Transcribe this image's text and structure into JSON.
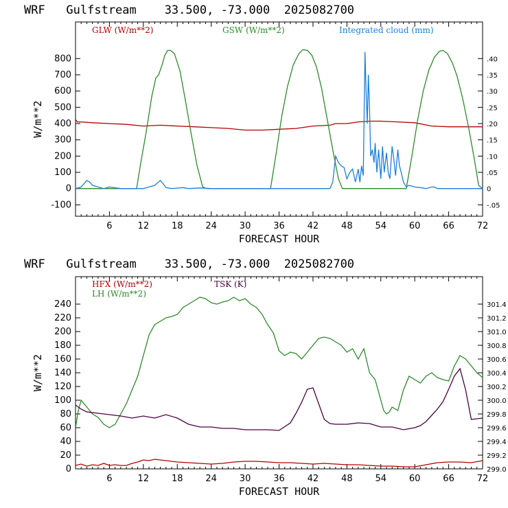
{
  "chart_data": [
    {
      "type": "line",
      "title": "WRF   Gulfstream    33.500, -73.000  2025082700",
      "xlabel": "FORECAST HOUR",
      "ylabel": "W/m**2",
      "xlim": [
        0,
        72
      ],
      "ylim": [
        -170,
        1025
      ],
      "y2lim": [
        -0.085,
        0.5125
      ],
      "xticks": [
        "6",
        "12",
        "18",
        "24",
        "30",
        "36",
        "42",
        "48",
        "54",
        "60",
        "66",
        "72"
      ],
      "xtick_values": [
        6,
        12,
        18,
        24,
        30,
        36,
        42,
        48,
        54,
        60,
        66,
        72
      ],
      "yticks": [
        "800",
        "700",
        "600",
        "500",
        "400",
        "300",
        "200",
        "100",
        "0",
        "-100"
      ],
      "ytick_values": [
        800,
        700,
        600,
        500,
        400,
        300,
        200,
        100,
        0,
        -100
      ],
      "y2ticks": [
        ".40",
        ".35",
        ".30",
        ".25",
        ".20",
        ".15",
        ".10",
        ".05",
        "0",
        "-.05"
      ],
      "y2tick_values": [
        0.4,
        0.35,
        0.3,
        0.25,
        0.2,
        0.15,
        0.1,
        0.05,
        0,
        -0.05
      ],
      "grid": false,
      "series": [
        {
          "name": "GLW (W/m**2)",
          "color": "#b00000",
          "axis": "left",
          "x": [
            0,
            0.3,
            1,
            3,
            6,
            9,
            12,
            15,
            18,
            21,
            24,
            27,
            30,
            33,
            36,
            39,
            42,
            45,
            46,
            48,
            50,
            52,
            54,
            57,
            60,
            63,
            66,
            69,
            72
          ],
          "y": [
            425,
            410,
            410,
            405,
            400,
            395,
            385,
            390,
            385,
            380,
            375,
            370,
            360,
            360,
            365,
            370,
            385,
            390,
            400,
            400,
            410,
            415,
            415,
            410,
            405,
            385,
            380,
            380,
            380
          ]
        },
        {
          "name": "GSW (W/m**2)",
          "color": "#2a8a2a",
          "axis": "left",
          "x": [
            0,
            10.8,
            11.5,
            12.5,
            13.5,
            14.2,
            14.7,
            15.3,
            15.8,
            16.3,
            16.8,
            17.5,
            18.5,
            19.5,
            20.5,
            21.5,
            22.5,
            23.2,
            34.5,
            35.5,
            36.5,
            37.5,
            38.5,
            39.5,
            40.2,
            41,
            41.8,
            42.6,
            43.5,
            44.5,
            45.5,
            46.5,
            47.2,
            58.5,
            59.5,
            60.5,
            61.5,
            62.5,
            63.5,
            64.4,
            65,
            65.8,
            66.7,
            67.5,
            68.5,
            69.5,
            70.5,
            71.3,
            72
          ],
          "y": [
            0,
            0,
            150,
            350,
            570,
            680,
            700,
            760,
            820,
            850,
            850,
            830,
            720,
            530,
            330,
            140,
            10,
            0,
            0,
            220,
            450,
            630,
            760,
            830,
            855,
            850,
            820,
            750,
            620,
            430,
            240,
            60,
            0,
            0,
            200,
            420,
            600,
            730,
            810,
            845,
            850,
            830,
            770,
            690,
            550,
            380,
            190,
            20,
            0
          ]
        },
        {
          "name": "Integrated cloud (mm)",
          "color": "#1a7fd8",
          "axis": "right",
          "x": [
            0,
            1,
            1.5,
            2,
            2.5,
            3,
            4,
            5,
            6,
            8,
            10,
            12,
            13,
            14,
            15,
            15.5,
            16,
            17,
            19,
            20,
            22,
            24,
            30,
            36,
            42,
            45,
            45.5,
            46,
            46.5,
            47,
            47.5,
            48,
            48.5,
            49,
            49.5,
            50,
            50.3,
            50.6,
            50.9,
            51.2,
            51.4,
            51.6,
            51.8,
            52,
            52.2,
            52.5,
            52.8,
            53,
            53.3,
            53.6,
            54,
            54.3,
            54.6,
            55,
            55.3,
            55.6,
            56,
            56.3,
            56.6,
            57,
            57.3,
            57.6,
            58,
            58.5,
            59,
            60,
            61,
            62,
            63,
            63.5,
            64,
            66,
            68,
            70,
            72
          ],
          "y": [
            0,
            0.005,
            0.015,
            0.025,
            0.02,
            0.01,
            0.005,
            0,
            0.005,
            0,
            0,
            0,
            0.005,
            0.01,
            0.025,
            0.015,
            0.003,
            0,
            0.003,
            0,
            0.002,
            0,
            0,
            0,
            0,
            0,
            0.02,
            0.1,
            0.08,
            0.07,
            0.065,
            0.03,
            0.05,
            0.06,
            0.02,
            0.06,
            0.02,
            0.07,
            0.04,
            0.42,
            0.3,
            0.2,
            0.35,
            0.25,
            0.1,
            0.12,
            0.08,
            0.14,
            0.05,
            0.12,
            0.03,
            0.13,
            0.05,
            0.11,
            0.05,
            0.03,
            0.13,
            0.09,
            0.04,
            0.12,
            0.07,
            0.05,
            0.02,
            0.005,
            0.01,
            0.005,
            0.003,
            0,
            0.005,
            0.005,
            0,
            0,
            0,
            0,
            0
          ]
        }
      ]
    },
    {
      "type": "line",
      "title": "WRF   Gulfstream    33.500, -73.000  2025082700",
      "xlabel": "FORECAST HOUR",
      "ylabel": "W/m**2",
      "xlim": [
        0,
        72
      ],
      "ylim": [
        0,
        280
      ],
      "y2lim": [
        299.0,
        301.8
      ],
      "xticks": [
        "6",
        "12",
        "18",
        "24",
        "30",
        "36",
        "42",
        "48",
        "54",
        "60",
        "66",
        "72"
      ],
      "xtick_values": [
        6,
        12,
        18,
        24,
        30,
        36,
        42,
        48,
        54,
        60,
        66,
        72
      ],
      "yticks": [
        "240",
        "220",
        "200",
        "180",
        "160",
        "140",
        "120",
        "100",
        "80",
        "60",
        "40",
        "20",
        "0"
      ],
      "ytick_values": [
        240,
        220,
        200,
        180,
        160,
        140,
        120,
        100,
        80,
        60,
        40,
        20,
        0
      ],
      "y2ticks": [
        "301.4",
        "301.2",
        "301.0",
        "300.8",
        "300.6",
        "300.4",
        "300.2",
        "300.0",
        "299.8",
        "299.6",
        "299.4",
        "299.2",
        "299.0"
      ],
      "y2tick_values": [
        301.4,
        301.2,
        301.0,
        300.8,
        300.6,
        300.4,
        300.2,
        300.0,
        299.8,
        299.6,
        299.4,
        299.2,
        299.0
      ],
      "grid": false,
      "series": [
        {
          "name": "HFX (W/m**2)",
          "color": "#b00000",
          "axis": "left",
          "x": [
            0,
            1,
            2,
            3,
            4,
            5,
            6,
            7,
            8,
            9,
            10,
            11,
            12,
            13,
            14,
            16,
            18,
            20,
            22,
            24,
            26,
            28,
            30,
            32,
            34,
            36,
            38,
            40,
            42,
            44,
            46,
            48,
            50,
            52,
            54,
            56,
            58,
            60,
            62,
            64,
            66,
            68,
            70,
            72
          ],
          "y": [
            5,
            7,
            4,
            6,
            5,
            8,
            5,
            6,
            5,
            5,
            8,
            10,
            13,
            12,
            14,
            12,
            10,
            9,
            8,
            7,
            8,
            10,
            11,
            11,
            10,
            9,
            9,
            8,
            7,
            8,
            7,
            6,
            6,
            5,
            4,
            4,
            3,
            3,
            6,
            9,
            10,
            10,
            9,
            12
          ]
        },
        {
          "name": "LH (W/m**2)",
          "color": "#2a8a2a",
          "axis": "left",
          "x": [
            0,
            0.5,
            1,
            2,
            3,
            4,
            5,
            6,
            7,
            8,
            9,
            10,
            11,
            12,
            13,
            14,
            15,
            16,
            17,
            18,
            19,
            20,
            21,
            22,
            23,
            24,
            25,
            26,
            27,
            28,
            29,
            30,
            31,
            32,
            33,
            34,
            35,
            36,
            37,
            38,
            39,
            40,
            41,
            42,
            43,
            44,
            45,
            46,
            47,
            48,
            49,
            50,
            51,
            52,
            53,
            54,
            54.5,
            55,
            55.5,
            56,
            57,
            58,
            59,
            60,
            61,
            62,
            63,
            64,
            65,
            66,
            67,
            68,
            69,
            70,
            71,
            72
          ],
          "y": [
            60,
            85,
            100,
            90,
            80,
            75,
            65,
            60,
            65,
            80,
            95,
            115,
            135,
            165,
            195,
            210,
            215,
            220,
            222,
            225,
            235,
            240,
            245,
            250,
            248,
            242,
            240,
            243,
            245,
            250,
            245,
            248,
            240,
            235,
            225,
            210,
            198,
            172,
            165,
            170,
            168,
            160,
            170,
            180,
            190,
            192,
            190,
            185,
            180,
            170,
            175,
            160,
            175,
            140,
            130,
            100,
            85,
            80,
            83,
            90,
            85,
            115,
            135,
            130,
            125,
            135,
            140,
            133,
            130,
            128,
            150,
            165,
            160,
            150,
            140,
            133
          ]
        },
        {
          "name": "TSK (K)",
          "color": "#4a0040",
          "axis": "right",
          "x": [
            0,
            1,
            2,
            4,
            6,
            8,
            10,
            12,
            14,
            16,
            18,
            20,
            22,
            24,
            26,
            28,
            30,
            32,
            34,
            36,
            38,
            39,
            40,
            41,
            42,
            43,
            44,
            45,
            46,
            48,
            50,
            52,
            54,
            56,
            58,
            60,
            61,
            62,
            63,
            64,
            65,
            66,
            67,
            68,
            69,
            70,
            71,
            72
          ],
          "y": [
            299.93,
            299.87,
            299.83,
            299.81,
            299.79,
            299.77,
            299.74,
            299.77,
            299.74,
            299.79,
            299.74,
            299.65,
            299.61,
            299.61,
            299.59,
            299.59,
            299.57,
            299.57,
            299.57,
            299.56,
            299.67,
            299.81,
            299.97,
            300.16,
            300.18,
            299.95,
            299.72,
            299.66,
            299.65,
            299.65,
            299.67,
            299.66,
            299.61,
            299.61,
            299.57,
            299.6,
            299.63,
            299.69,
            299.78,
            299.87,
            299.98,
            300.16,
            300.35,
            300.46,
            300.15,
            299.72,
            299.73,
            299.74
          ]
        }
      ]
    }
  ]
}
